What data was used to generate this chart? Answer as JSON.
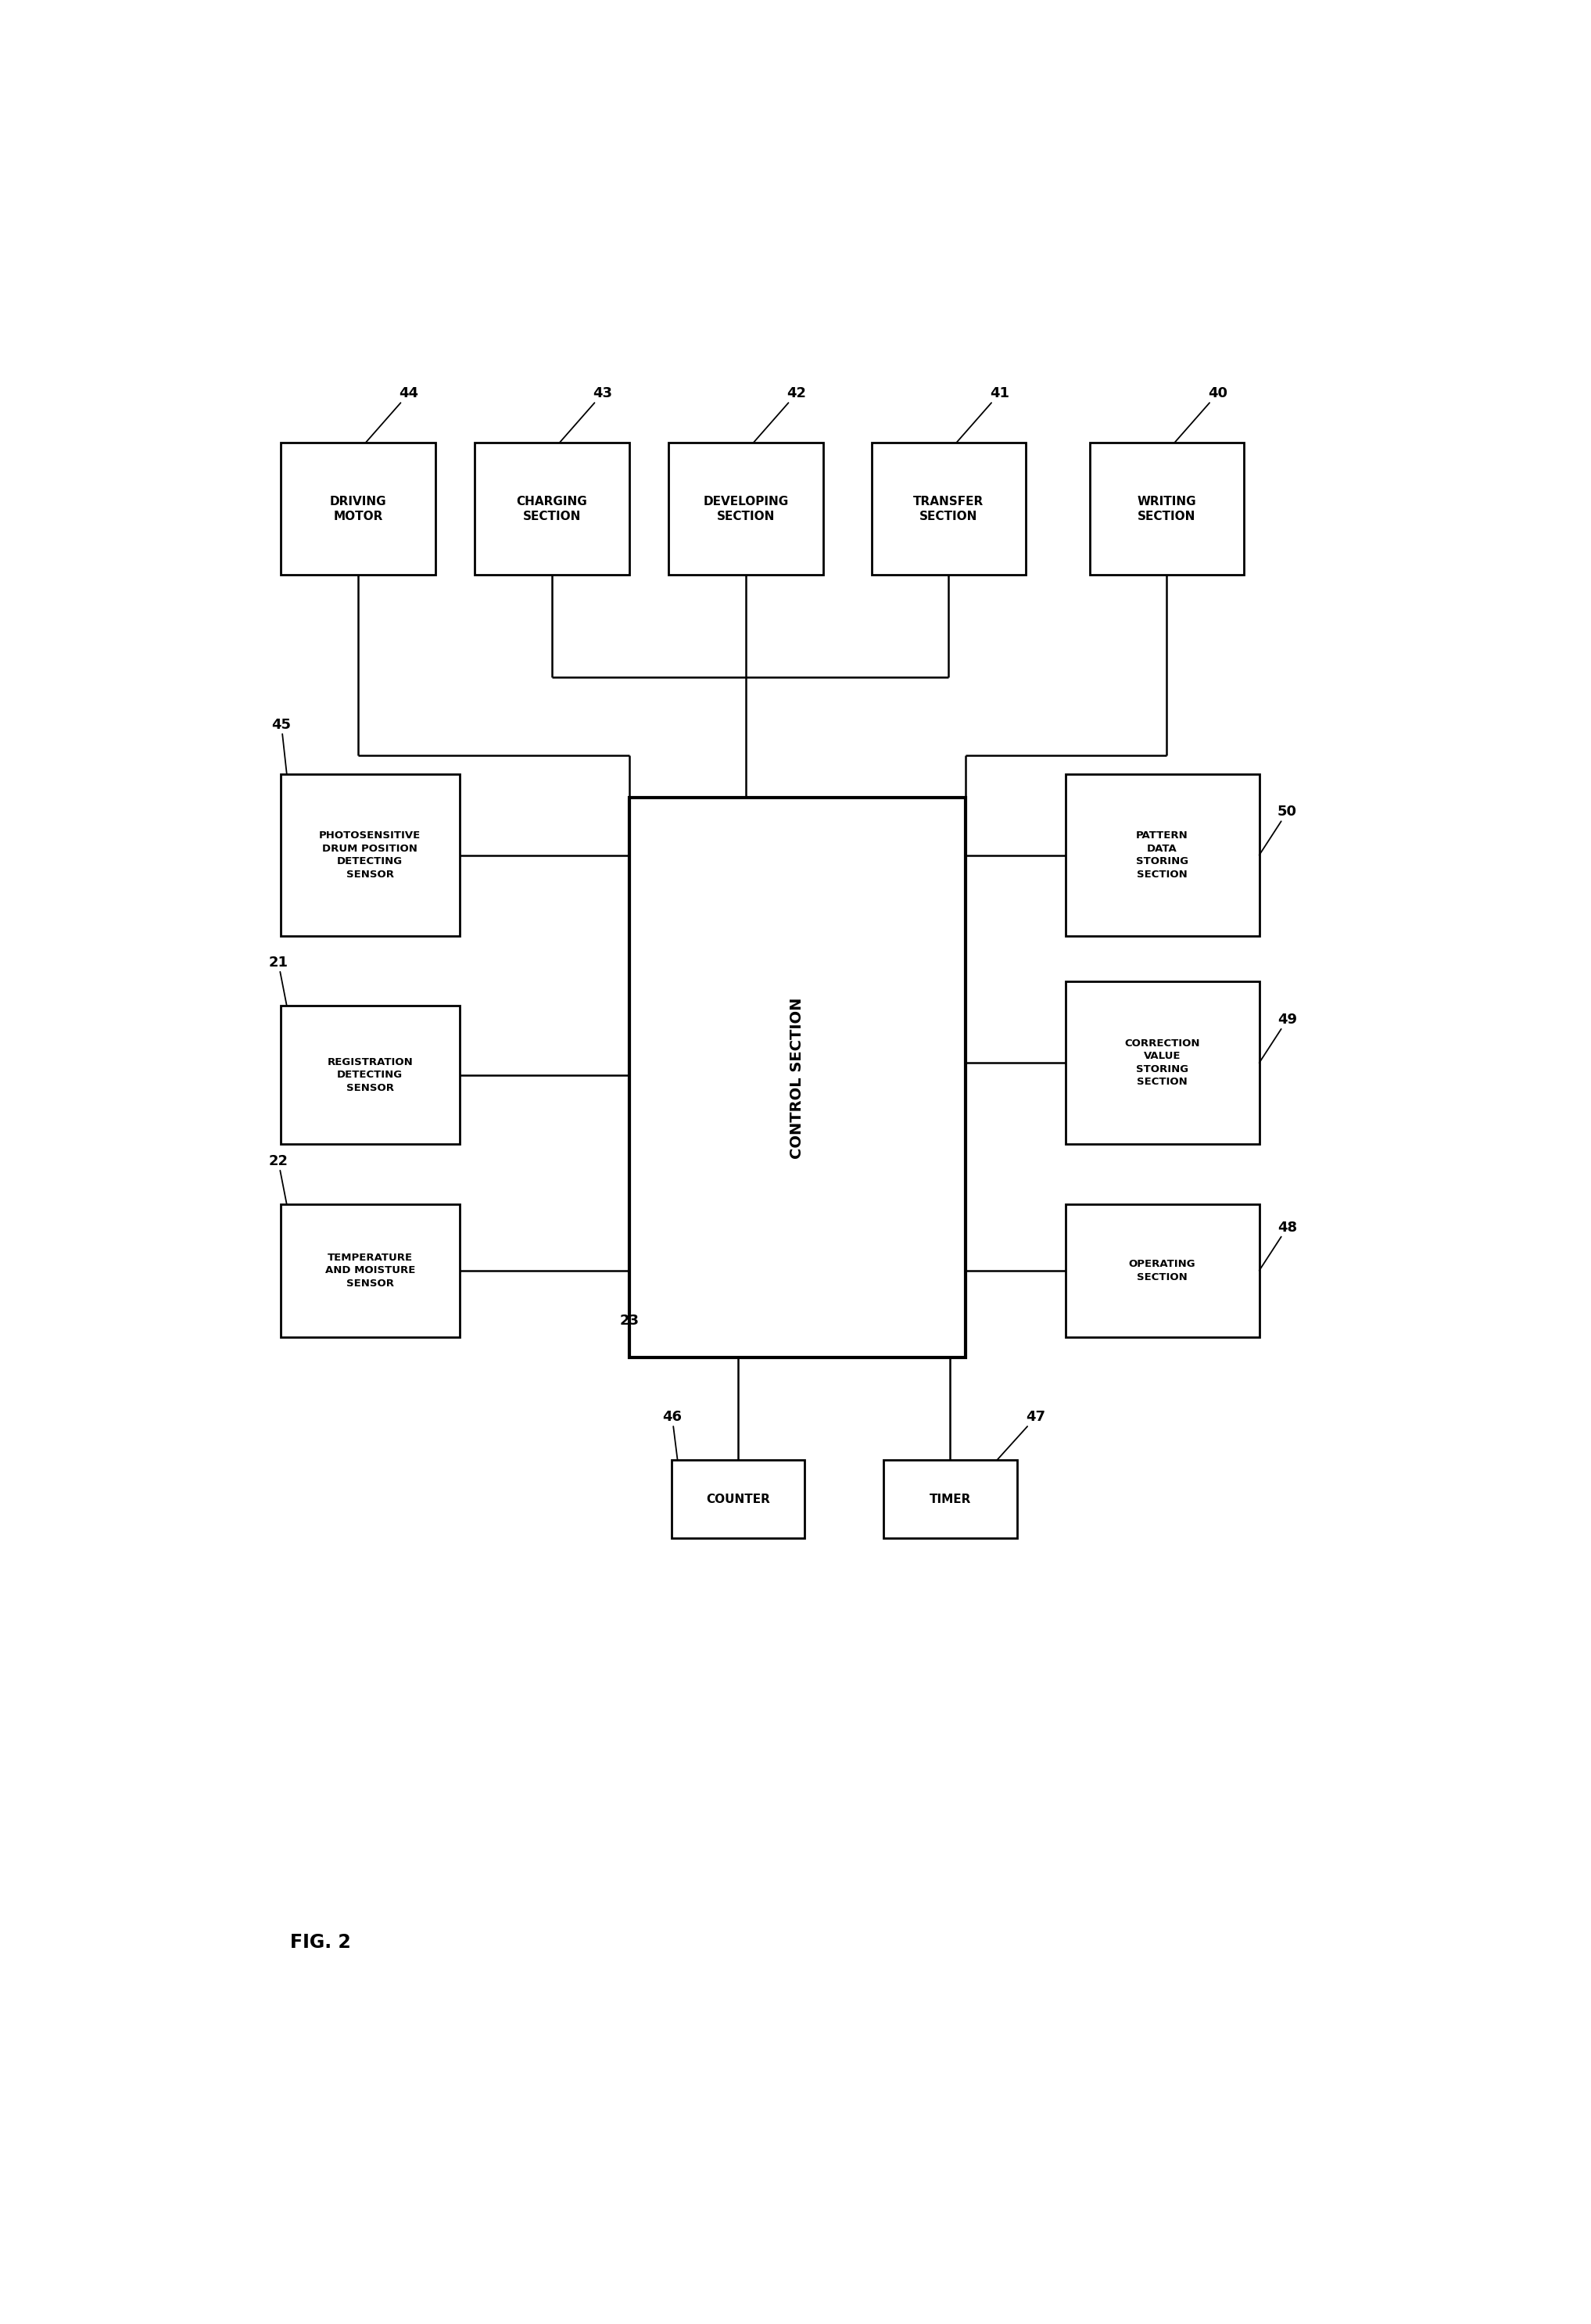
{
  "bg_color": "#ffffff",
  "title": "FIG. 2",
  "box_color": "#ffffff",
  "box_edge_color": "#000000",
  "text_color": "#000000",
  "line_color": "#000000",
  "top_boxes": [
    {
      "label": "DRIVING\nMOTOR",
      "num": "44"
    },
    {
      "label": "CHARGING\nSECTION",
      "num": "43"
    },
    {
      "label": "DEVELOPING\nSECTION",
      "num": "42"
    },
    {
      "label": "TRANSFER\nSECTION",
      "num": "41"
    },
    {
      "label": "WRITING\nSECTION",
      "num": "40"
    }
  ],
  "left_boxes": [
    {
      "label": "PHOTOSENSITIVE\nDRUM POSITION\nDETECTING\nSENSOR",
      "num": "45"
    },
    {
      "label": "REGISTRATION\nDETECTING\nSENSOR",
      "num": "21"
    },
    {
      "label": "TEMPERATURE\nAND MOISTURE\nSENSOR",
      "num": "22"
    }
  ],
  "right_boxes": [
    {
      "label": "PATTERN\nDATA\nSTORING\nSECTION",
      "num": "50"
    },
    {
      "label": "CORRECTION\nVALUE\nSTORING\nSECTION",
      "num": "49"
    },
    {
      "label": "OPERATING\nSECTION",
      "num": "48"
    }
  ],
  "bottom_boxes": [
    {
      "label": "COUNTER",
      "num": "46"
    },
    {
      "label": "TIMER",
      "num": "47"
    }
  ],
  "control_label": "CONTROL SECTION",
  "label_23": "23"
}
